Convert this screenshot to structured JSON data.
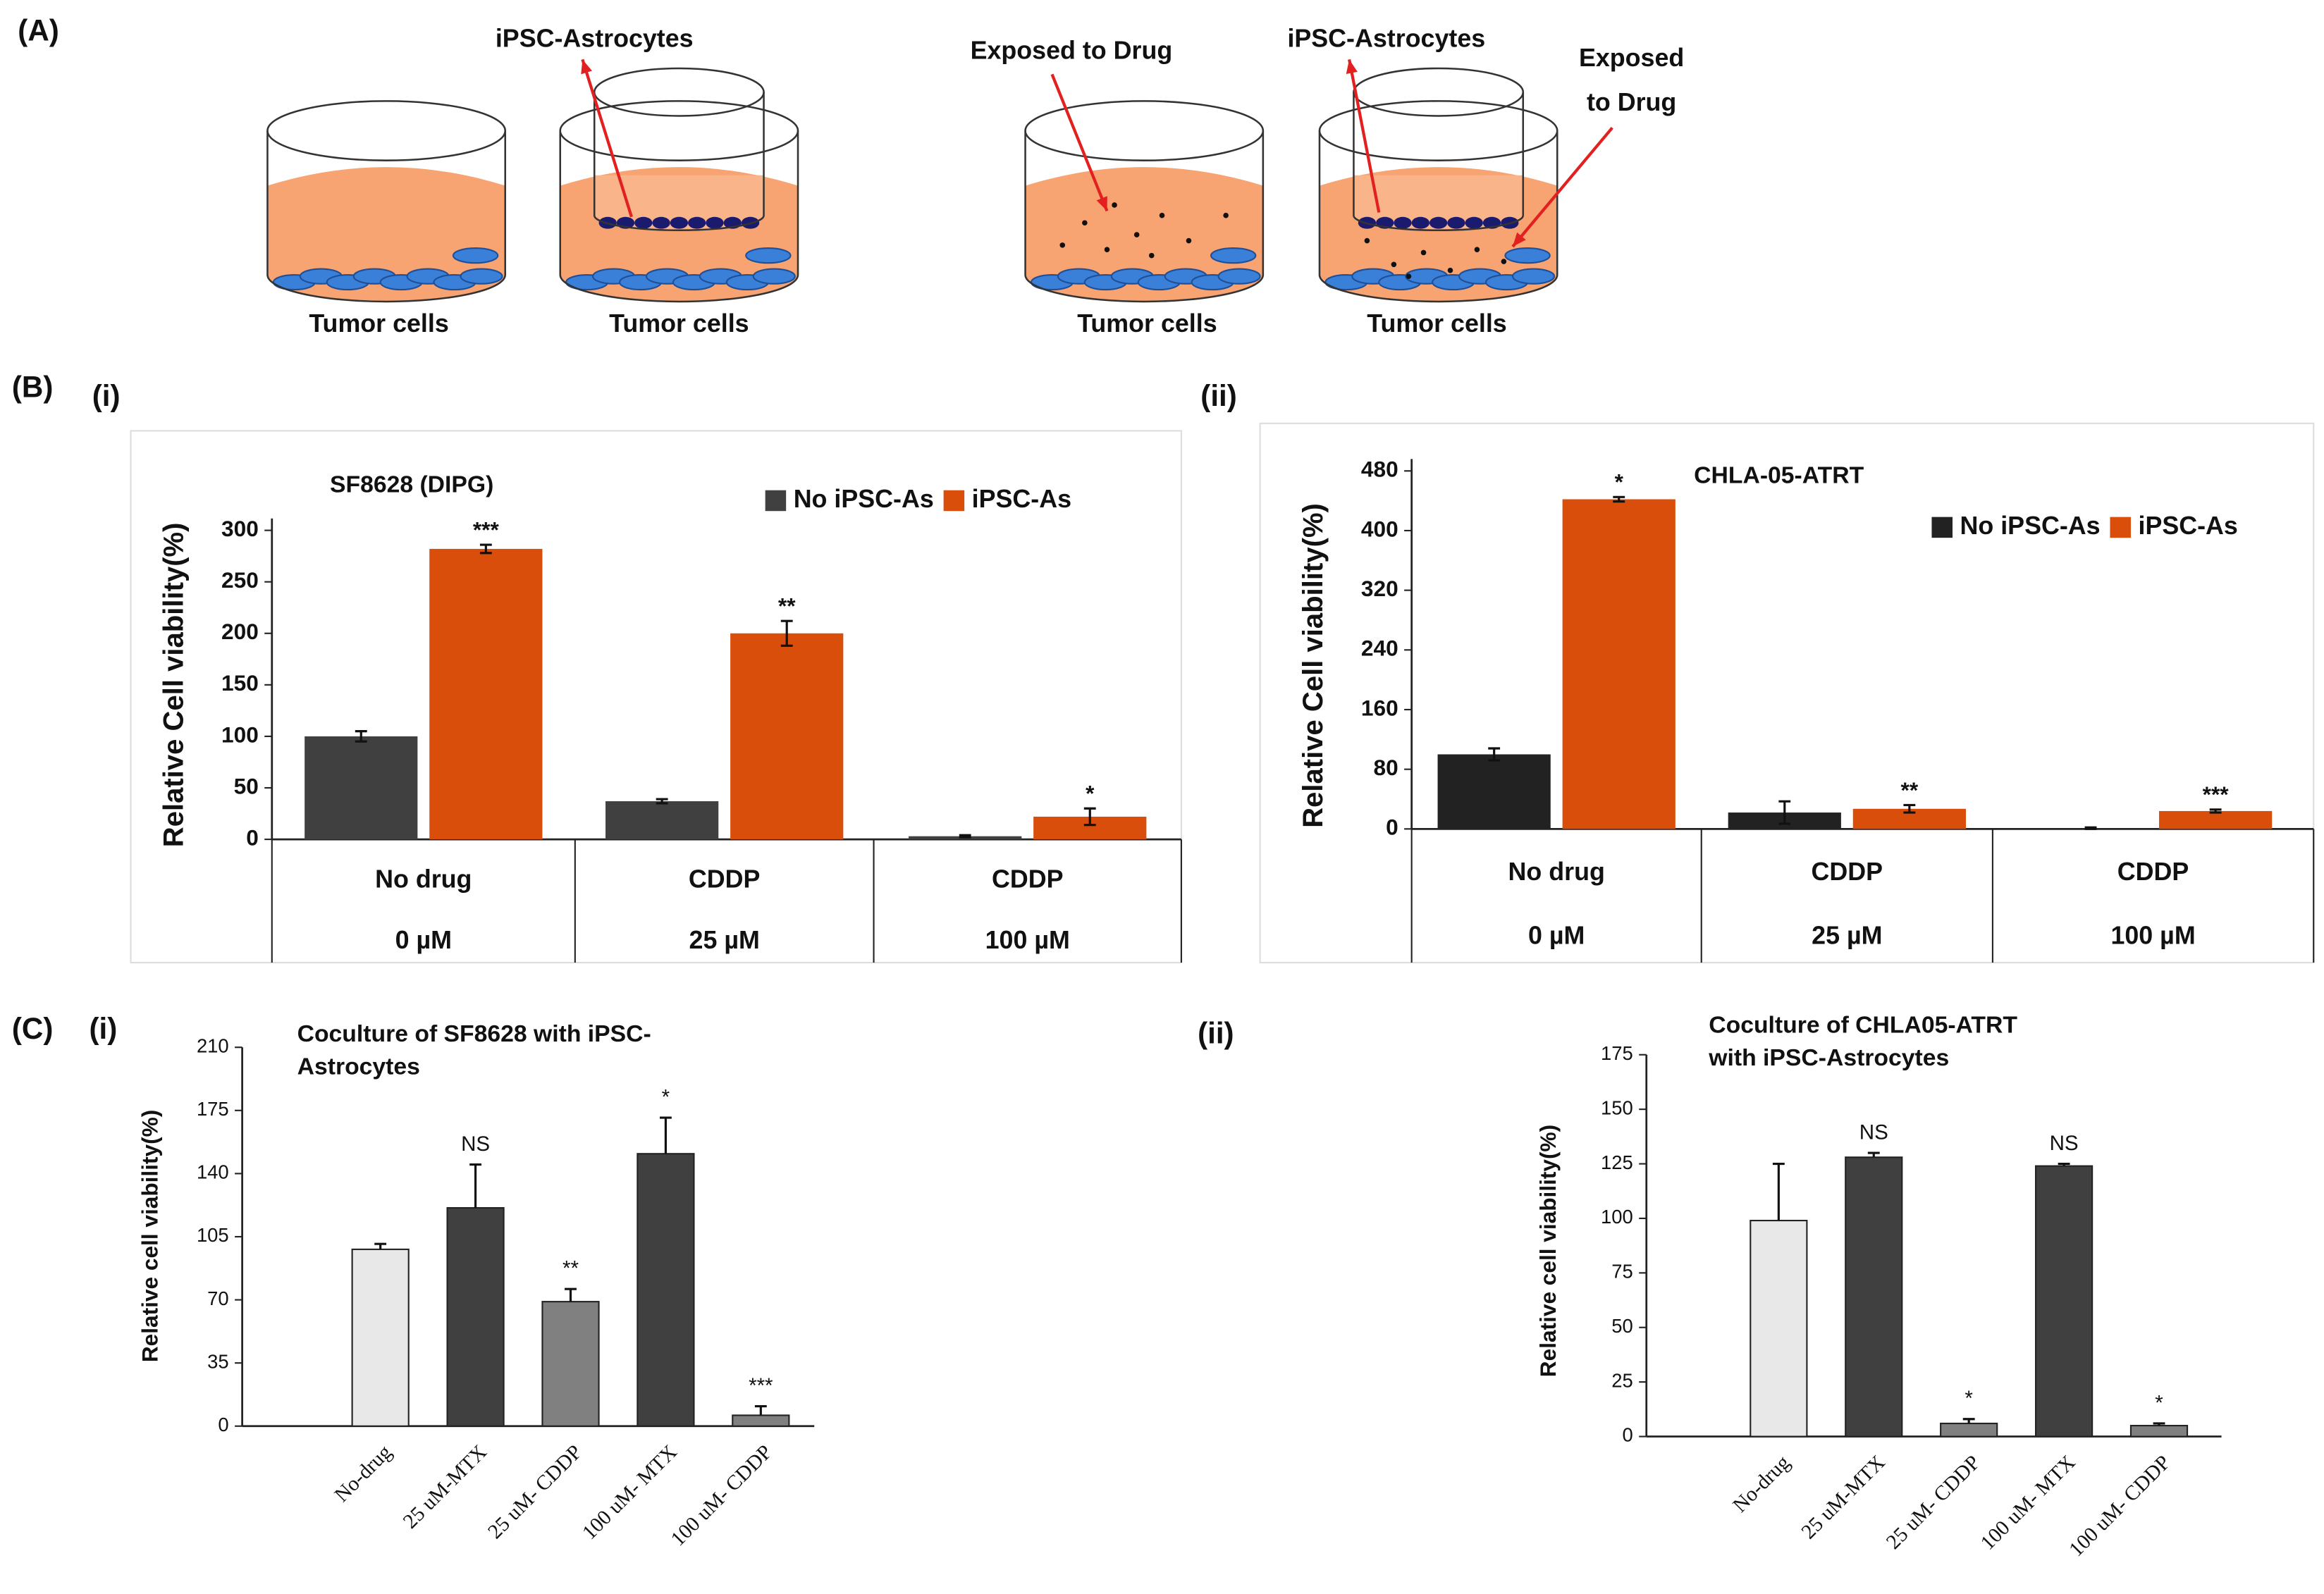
{
  "panels": {
    "a": "(A)",
    "b": "(B)",
    "bi": "(i)",
    "bii": "(ii)",
    "c": "(C)",
    "ci": "(i)",
    "cii": "(ii)"
  },
  "diagram": {
    "astro_left": "iPSC-Astrocytes",
    "tumor_1": "Tumor cells",
    "tumor_2": "Tumor cells",
    "exposed_1": "Exposed to Drug",
    "astro_right": "iPSC-Astrocytes",
    "exposed_2": [
      "Exposed",
      "to Drug"
    ],
    "tumor_3": "Tumor cells",
    "tumor_4": "Tumor cells"
  },
  "chart_data": [
    {
      "type": "bar",
      "title": [
        "SF8628 (DIPG)"
      ],
      "ylabel": "Relative Cell viability(%)",
      "categories": [
        [
          "No drug",
          "0 µM"
        ],
        [
          "CDDP",
          "25 µM"
        ],
        [
          "CDDP",
          "100 µM"
        ]
      ],
      "series": [
        {
          "name": "No iPSC-As",
          "color": "#404040",
          "values": [
            100,
            37,
            3
          ],
          "errors": [
            5,
            2,
            1
          ]
        },
        {
          "name": "iPSC-As",
          "color": "#d94e0b",
          "values": [
            282,
            200,
            22
          ],
          "errors": [
            4,
            12,
            8
          ],
          "significance": [
            "***",
            "**",
            "*"
          ]
        }
      ],
      "ylim": [
        0,
        300
      ],
      "yticks": [
        0,
        50,
        100,
        150,
        200,
        250,
        300
      ],
      "legend": "top-right"
    },
    {
      "type": "bar",
      "title": [
        "CHLA-05-ATRT"
      ],
      "ylabel": "Relative Cell viability(%)",
      "categories": [
        [
          "No drug",
          "0 µM"
        ],
        [
          "CDDP",
          "25 µM"
        ],
        [
          "CDDP",
          "100 µM"
        ]
      ],
      "series": [
        {
          "name": "No iPSC-As",
          "color": "#222222",
          "values": [
            100,
            22,
            1
          ],
          "errors": [
            8,
            15,
            1
          ]
        },
        {
          "name": "iPSC-As",
          "color": "#d94e0b",
          "values": [
            442,
            27,
            24
          ],
          "errors": [
            3,
            5,
            2
          ],
          "significance": [
            "*",
            "**",
            "***"
          ]
        }
      ],
      "ylim": [
        0,
        480
      ],
      "yticks": [
        0,
        80,
        160,
        240,
        320,
        400,
        480
      ],
      "legend": "top-right"
    },
    {
      "type": "bar",
      "title": [
        "Coculture of SF8628 with iPSC-",
        "Astrocytes"
      ],
      "ylabel": "Relative cell viability(%)",
      "categories": [
        "No-drug",
        "25 uM-MTX",
        "25 uM- CDDP",
        "100 uM- MTX",
        "100 uM- CDDP"
      ],
      "values": [
        98,
        121,
        69,
        151,
        6
      ],
      "errors": [
        3,
        24,
        7,
        20,
        5
      ],
      "colors": [
        "#e8e8e8",
        "#404040",
        "#808080",
        "#404040",
        "#808080"
      ],
      "significance": [
        null,
        "NS",
        "**",
        "*",
        "***"
      ],
      "ylim": [
        0,
        210
      ],
      "yticks": [
        0,
        35,
        70,
        105,
        140,
        175,
        210
      ]
    },
    {
      "type": "bar",
      "title": [
        "Coculture of CHLA05-ATRT",
        "with iPSC-Astrocytes"
      ],
      "ylabel": "Relative cell viability(%)",
      "categories": [
        "No-drug",
        "25 uM-MTX",
        "25 uM- CDDP",
        "100 uM- MTX",
        "100 uM- CDDP"
      ],
      "values": [
        99,
        128,
        6,
        124,
        5
      ],
      "errors": [
        26,
        2,
        2,
        1,
        1
      ],
      "colors": [
        "#e8e8e8",
        "#404040",
        "#808080",
        "#404040",
        "#808080"
      ],
      "significance": [
        null,
        "NS",
        "*",
        "NS",
        "*"
      ],
      "ylim": [
        0,
        175
      ],
      "yticks": [
        0,
        25,
        50,
        75,
        100,
        125,
        150,
        175
      ]
    }
  ]
}
